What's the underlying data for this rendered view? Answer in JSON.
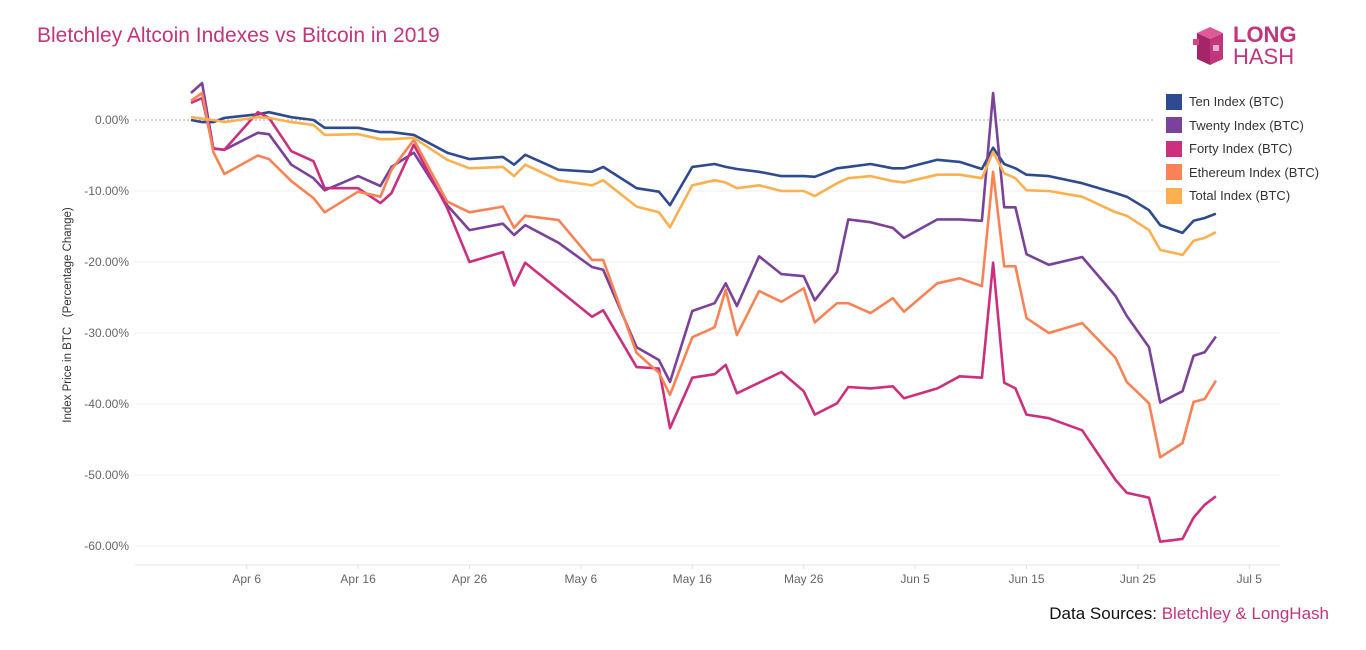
{
  "chart_data": {
    "type": "line",
    "title": "Bletchley Altcoin Indexes vs Bitcoin in 2019",
    "xlabel": "",
    "ylabel": "Index Price in BTC   (Percentage Change)",
    "ylim": [
      -63,
      8
    ],
    "yticks": [
      0,
      -10,
      -20,
      -30,
      -40,
      -50,
      -60
    ],
    "ytick_labels": [
      "0.00%",
      "-10.00%",
      "-20.00%",
      "-30.00%",
      "-40.00%",
      "-50.00%",
      "-60.00%"
    ],
    "xticks": [
      "2019-04-06",
      "2019-04-16",
      "2019-04-26",
      "2019-05-06",
      "2019-05-16",
      "2019-05-26",
      "2019-06-05",
      "2019-06-15",
      "2019-06-25",
      "2019-07-05"
    ],
    "xtick_labels": [
      "Apr 6",
      "Apr 16",
      "Apr 26",
      "May 6",
      "May 16",
      "May 26",
      "Jun 5",
      "Jun 15",
      "Jun 25",
      "Jul 5"
    ],
    "grid": true,
    "legend_position": "top-right",
    "x": [
      "2019-04-01",
      "2019-04-02",
      "2019-04-03",
      "2019-04-04",
      "2019-04-07",
      "2019-04-08",
      "2019-04-10",
      "2019-04-12",
      "2019-04-13",
      "2019-04-16",
      "2019-04-18",
      "2019-04-19",
      "2019-04-21",
      "2019-04-24",
      "2019-04-26",
      "2019-04-29",
      "2019-04-30",
      "2019-05-01",
      "2019-05-04",
      "2019-05-07",
      "2019-05-08",
      "2019-05-11",
      "2019-05-13",
      "2019-05-14",
      "2019-05-16",
      "2019-05-18",
      "2019-05-19",
      "2019-05-20",
      "2019-05-22",
      "2019-05-24",
      "2019-05-26",
      "2019-05-27",
      "2019-05-29",
      "2019-05-30",
      "2019-06-01",
      "2019-06-03",
      "2019-06-04",
      "2019-06-07",
      "2019-06-09",
      "2019-06-11",
      "2019-06-12",
      "2019-06-13",
      "2019-06-14",
      "2019-06-15",
      "2019-06-17",
      "2019-06-20",
      "2019-06-23",
      "2019-06-24",
      "2019-06-26",
      "2019-06-27",
      "2019-06-29",
      "2019-06-30",
      "2019-07-01",
      "2019-07-02"
    ],
    "series": [
      {
        "name": "Ten Index (BTC)",
        "color": "#2f4b8f",
        "values": [
          0,
          -0.3,
          -0.3,
          0.3,
          0.8,
          1.1,
          0.4,
          0,
          -1.1,
          -1.1,
          -1.7,
          -1.7,
          -2.1,
          -4.6,
          -5.5,
          -5.2,
          -6.3,
          -4.9,
          -7,
          -7.3,
          -6.6,
          -9.6,
          -10.1,
          -12,
          -6.6,
          -6.2,
          -6.6,
          -6.9,
          -7.3,
          -7.9,
          -7.9,
          -8,
          -6.8,
          -6.6,
          -6.2,
          -6.8,
          -6.8,
          -5.6,
          -5.9,
          -6.9,
          -3.9,
          -6.2,
          -6.8,
          -7.7,
          -7.9,
          -8.9,
          -10.3,
          -10.8,
          -12.7,
          -14.8,
          -15.9,
          -14.2,
          -13.8,
          -13.2
        ]
      },
      {
        "name": "Twenty Index (BTC)",
        "color": "#7a429a",
        "values": [
          3.8,
          5.2,
          -4,
          -4.2,
          -1.8,
          -2,
          -6.3,
          -8.2,
          -9.9,
          -7.9,
          -9.3,
          -6.6,
          -4.6,
          -12,
          -15.5,
          -14.6,
          -16.2,
          -14.8,
          -17.3,
          -20.7,
          -21.1,
          -32,
          -33.8,
          -36.9,
          -26.9,
          -25.8,
          -23,
          -26.2,
          -19.2,
          -21.7,
          -22,
          -25.4,
          -21.4,
          -14,
          -14.4,
          -15.2,
          -16.6,
          -14,
          -14,
          -14.2,
          3.8,
          -12.3,
          -12.3,
          -18.9,
          -20.4,
          -19.3,
          -24.8,
          -27.6,
          -32,
          -39.8,
          -38.2,
          -33.2,
          -32.7,
          -30.5
        ]
      },
      {
        "name": "Forty Index (BTC)",
        "color": "#cc2f7e",
        "values": [
          2.4,
          3.1,
          -4,
          -4.2,
          1.1,
          0.3,
          -4.4,
          -5.8,
          -9.6,
          -9.6,
          -11.7,
          -10.3,
          -3.5,
          -12.4,
          -20,
          -18.6,
          -23.3,
          -20.1,
          -23.9,
          -27.7,
          -26.8,
          -34.8,
          -35,
          -43.4,
          -36.3,
          -35.8,
          -34.5,
          -38.5,
          -37,
          -35.5,
          -38.2,
          -41.5,
          -39.9,
          -37.6,
          -37.8,
          -37.5,
          -39.2,
          -37.8,
          -36.1,
          -36.3,
          -20.1,
          -37,
          -37.8,
          -41.5,
          -42,
          -43.7,
          -50.7,
          -52.5,
          -53.2,
          -59.4,
          -59,
          -56,
          -54.2,
          -53
        ]
      },
      {
        "name": "Ethereum Index (BTC)",
        "color": "#fa8355",
        "values": [
          2.7,
          3.8,
          -4.5,
          -7.6,
          -5,
          -5.5,
          -8.6,
          -11,
          -13,
          -10.1,
          -10.8,
          -7,
          -2.8,
          -11.5,
          -13,
          -12.2,
          -15.2,
          -13.5,
          -14.1,
          -19.7,
          -19.7,
          -32.8,
          -35.6,
          -38.7,
          -30.6,
          -29.2,
          -23.9,
          -30.3,
          -24.1,
          -25.6,
          -23.7,
          -28.5,
          -25.8,
          -25.8,
          -27.2,
          -25.1,
          -27,
          -23,
          -22.3,
          -23.4,
          -7.3,
          -20.6,
          -20.6,
          -27.9,
          -30,
          -28.6,
          -33.5,
          -36.9,
          -39.9,
          -47.5,
          -45.5,
          -39.7,
          -39.3,
          -36.7
        ]
      },
      {
        "name": "Total Index (BTC)",
        "color": "#fcb04f",
        "values": [
          0.4,
          0.2,
          0,
          -0.3,
          0.4,
          0.3,
          -0.3,
          -0.7,
          -2.1,
          -2,
          -2.7,
          -2.7,
          -2.5,
          -5.6,
          -6.8,
          -6.6,
          -7.9,
          -6.3,
          -8.5,
          -9.2,
          -8.5,
          -12.2,
          -13,
          -15.1,
          -9.2,
          -8.5,
          -8.8,
          -9.6,
          -9.2,
          -10,
          -10,
          -10.7,
          -8.9,
          -8.2,
          -7.9,
          -8.6,
          -8.8,
          -7.7,
          -7.7,
          -8.2,
          -4.5,
          -7.5,
          -8.2,
          -9.9,
          -10,
          -10.8,
          -13,
          -13.5,
          -15.5,
          -18.3,
          -19,
          -17,
          -16.6,
          -15.8
        ]
      }
    ]
  },
  "logo": {
    "line1": "LONG",
    "line2": "HASH"
  },
  "footer": {
    "prefix": "Data Sources: ",
    "sources": "Bletchley & LongHash"
  }
}
